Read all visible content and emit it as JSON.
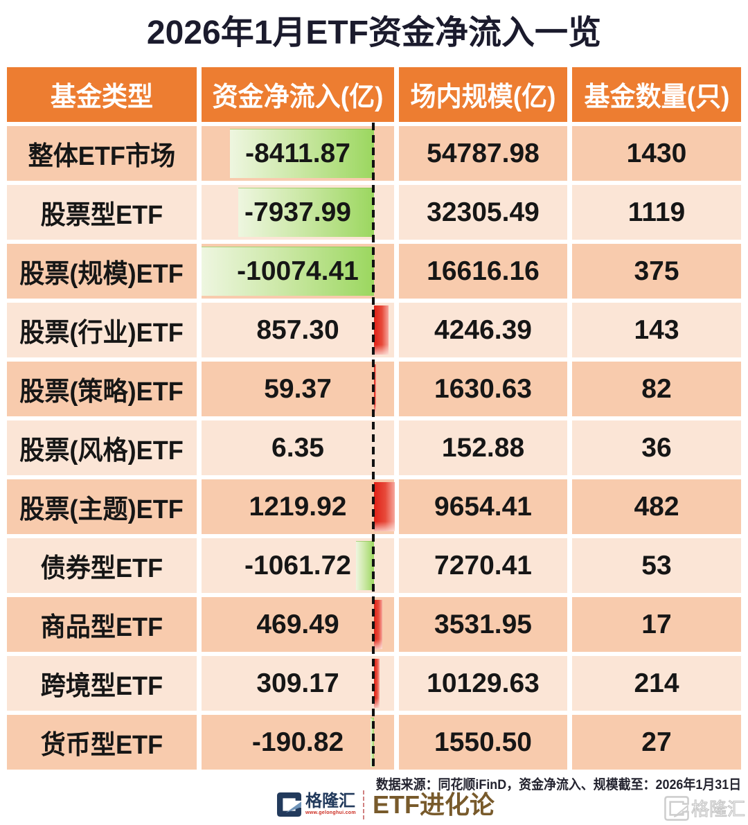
{
  "title": "2026年1月ETF资金净流入一览",
  "table": {
    "columns": [
      "基金类型",
      "资金净流入(亿)",
      "场内规模(亿)",
      "基金数量(只)"
    ],
    "rows": [
      {
        "type": "整体ETF市场",
        "flow": "-8411.87",
        "scale": "54787.98",
        "count": "1430",
        "value": -8411.87
      },
      {
        "type": "股票型ETF",
        "flow": "-7937.99",
        "scale": "32305.49",
        "count": "1119",
        "value": -7937.99
      },
      {
        "type": "股票(规模)ETF",
        "flow": "-10074.41",
        "scale": "16616.16",
        "count": "375",
        "value": -10074.41
      },
      {
        "type": "股票(行业)ETF",
        "flow": "857.30",
        "scale": "4246.39",
        "count": "143",
        "value": 857.3
      },
      {
        "type": "股票(策略)ETF",
        "flow": "59.37",
        "scale": "1630.63",
        "count": "82",
        "value": 59.37
      },
      {
        "type": "股票(风格)ETF",
        "flow": "6.35",
        "scale": "152.88",
        "count": "36",
        "value": 6.35
      },
      {
        "type": "股票(主题)ETF",
        "flow": "1219.92",
        "scale": "9654.41",
        "count": "482",
        "value": 1219.92
      },
      {
        "type": "债券型ETF",
        "flow": "-1061.72",
        "scale": "7270.41",
        "count": "53",
        "value": -1061.72
      },
      {
        "type": "商品型ETF",
        "flow": "469.49",
        "scale": "3531.95",
        "count": "17",
        "value": 469.49
      },
      {
        "type": "跨境型ETF",
        "flow": "309.17",
        "scale": "10129.63",
        "count": "214",
        "value": 309.17
      },
      {
        "type": "货币型ETF",
        "flow": "-190.82",
        "scale": "1550.50",
        "count": "27",
        "value": -190.82
      }
    ]
  },
  "footer": {
    "source_note": "数据来源：同花顺iFinD，资金净流入、规模截至：2026年1月31日"
  },
  "branding": {
    "logo_name": "格隆汇",
    "logo_url": "www.gelonghui.com",
    "channel": "ETF进化论",
    "watermark": "格隆汇"
  },
  "colors": {
    "header_bg": "#ED7D31",
    "row_dark": "#F8CBAD",
    "row_light": "#FBE5D6",
    "negative_bar_green": [
      "#eef6e0",
      "#9bd75f"
    ],
    "positive_bar_red": [
      "#e02016",
      "#f6a89e"
    ],
    "title_text": "#1b1b2d",
    "channel_text": "#785a2b",
    "logo_navy": "#223a5c"
  },
  "chart_data": {
    "type": "table",
    "title": "2026年1月ETF资金净流入一览",
    "columns": [
      "基金类型",
      "资金净流入(亿)",
      "场内规模(亿)",
      "基金数量(只)"
    ],
    "rows": [
      [
        "整体ETF市场",
        -8411.87,
        54787.98,
        1430
      ],
      [
        "股票型ETF",
        -7937.99,
        32305.49,
        1119
      ],
      [
        "股票(规模)ETF",
        -10074.41,
        16616.16,
        375
      ],
      [
        "股票(行业)ETF",
        857.3,
        4246.39,
        143
      ],
      [
        "股票(策略)ETF",
        59.37,
        1630.63,
        82
      ],
      [
        "股票(风格)ETF",
        6.35,
        152.88,
        36
      ],
      [
        "股票(主题)ETF",
        1219.92,
        9654.41,
        482
      ],
      [
        "债券型ETF",
        -1061.72,
        7270.41,
        53
      ],
      [
        "商品型ETF",
        469.49,
        3531.95,
        17
      ],
      [
        "跨境型ETF",
        309.17,
        10129.63,
        214
      ],
      [
        "货币型ETF",
        -190.82,
        1550.5,
        27
      ]
    ],
    "databar": {
      "column": "资金净流入(亿)",
      "negative_color": "green",
      "positive_color": "red",
      "axis_max": 10074.41
    }
  }
}
